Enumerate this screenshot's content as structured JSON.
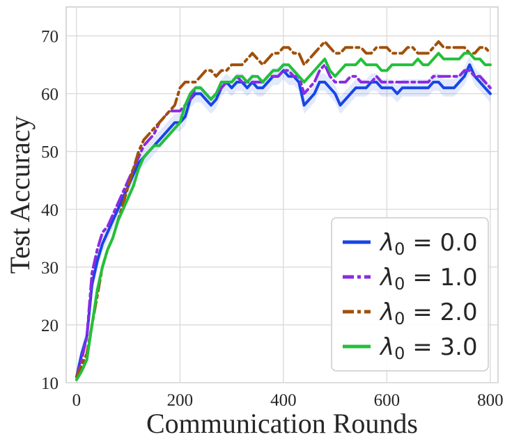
{
  "chart_data": {
    "type": "line",
    "title": "",
    "xlabel": "Communication Rounds",
    "ylabel": "Test Accuracy",
    "xlim": [
      -20,
      815
    ],
    "ylim": [
      10,
      75
    ],
    "xticks": [
      0,
      200,
      400,
      600,
      800
    ],
    "yticks": [
      10,
      20,
      30,
      40,
      50,
      60,
      70
    ],
    "grid": true,
    "legend_position": "lower-right",
    "x": [
      0,
      10,
      20,
      30,
      40,
      50,
      60,
      70,
      80,
      90,
      100,
      110,
      120,
      130,
      140,
      150,
      160,
      170,
      180,
      190,
      200,
      210,
      220,
      230,
      240,
      250,
      260,
      270,
      280,
      290,
      300,
      310,
      320,
      330,
      340,
      350,
      360,
      370,
      380,
      390,
      400,
      410,
      420,
      430,
      440,
      450,
      460,
      470,
      480,
      490,
      500,
      510,
      520,
      530,
      540,
      550,
      560,
      570,
      580,
      590,
      600,
      610,
      620,
      630,
      640,
      650,
      660,
      670,
      680,
      690,
      700,
      710,
      720,
      730,
      740,
      750,
      760,
      770,
      780,
      790,
      800
    ],
    "series": [
      {
        "name": "λ0 = 0.0",
        "legend_label": "λ",
        "legend_sub": "0",
        "legend_value": " = 0.0",
        "color": "#1746e6",
        "dash": "solid",
        "band": true,
        "values": [
          11,
          15,
          18,
          27,
          31,
          34,
          36,
          38,
          40,
          42,
          44,
          46,
          48,
          49,
          50,
          51,
          52,
          53,
          54,
          55,
          55,
          56,
          59,
          60,
          60,
          59,
          58,
          59,
          61,
          62,
          61,
          62,
          62,
          61,
          62,
          61,
          61,
          62,
          63,
          63,
          64,
          63,
          63,
          62,
          58,
          59,
          60,
          62,
          62,
          61,
          60,
          58,
          59,
          60,
          61,
          61,
          61,
          62,
          62,
          61,
          61,
          61,
          60,
          61,
          61,
          61,
          61,
          61,
          61,
          62,
          62,
          61,
          61,
          61,
          62,
          63,
          65,
          63,
          62,
          61,
          60
        ]
      },
      {
        "name": "λ0 = 1.0",
        "legend_label": "λ",
        "legend_sub": "0",
        "legend_value": " = 1.0",
        "color": "#8a2be2",
        "dash": "dashdot",
        "band": false,
        "values": [
          11,
          14,
          18,
          29,
          33,
          36,
          37,
          39,
          41,
          43,
          45,
          47,
          49,
          51,
          52,
          53,
          55,
          56,
          57,
          57,
          57,
          58,
          59,
          61,
          61,
          60,
          59,
          60,
          61,
          62,
          62,
          63,
          62,
          62,
          62,
          62,
          62,
          63,
          63,
          63,
          64,
          64,
          63,
          63,
          60,
          61,
          62,
          64,
          65,
          63,
          62,
          62,
          62,
          63,
          63,
          62,
          62,
          62,
          63,
          62,
          62,
          62,
          62,
          62,
          62,
          62,
          62,
          62,
          62,
          63,
          63,
          63,
          63,
          63,
          63,
          64,
          64,
          63,
          63,
          62,
          61
        ]
      },
      {
        "name": "λ0 = 2.0",
        "legend_label": "λ",
        "legend_sub": "0",
        "legend_value": " = 2.0",
        "color": "#a0500a",
        "dash": "dashdot",
        "band": false,
        "values": [
          11,
          13,
          15,
          20,
          25,
          30,
          33,
          35,
          38,
          41,
          44,
          47,
          50,
          52,
          53,
          54,
          55,
          56,
          57,
          58,
          61,
          62,
          62,
          62,
          63,
          64,
          64,
          63,
          64,
          64,
          65,
          65,
          65,
          66,
          67,
          66,
          65,
          66,
          67,
          67,
          68,
          68,
          67,
          67,
          65,
          66,
          67,
          68,
          69,
          68,
          67,
          67,
          68,
          68,
          68,
          68,
          67,
          67,
          68,
          68,
          68,
          67,
          67,
          67,
          68,
          68,
          67,
          67,
          67,
          68,
          69,
          68,
          68,
          68,
          68,
          68,
          67,
          67,
          68,
          68,
          67
        ]
      },
      {
        "name": "λ0 = 3.0",
        "legend_label": "λ",
        "legend_sub": "0",
        "legend_value": " = 3.0",
        "color": "#22c03a",
        "dash": "solid",
        "band": false,
        "values": [
          10.5,
          12,
          14,
          20,
          26,
          30,
          33,
          35,
          38,
          40,
          42,
          44,
          47,
          49,
          50,
          51,
          51,
          52,
          53,
          54,
          55,
          58,
          60,
          61,
          61,
          60,
          59,
          60,
          62,
          62,
          62,
          63,
          63,
          62,
          63,
          63,
          62,
          63,
          64,
          64,
          65,
          65,
          64,
          63,
          62,
          63,
          64,
          65,
          66,
          64,
          63,
          64,
          65,
          65,
          65,
          66,
          65,
          65,
          65,
          64,
          64,
          65,
          65,
          65,
          65,
          65,
          66,
          65,
          65,
          66,
          67,
          66,
          66,
          66,
          66,
          67,
          67,
          66,
          66,
          65,
          65
        ]
      }
    ]
  }
}
